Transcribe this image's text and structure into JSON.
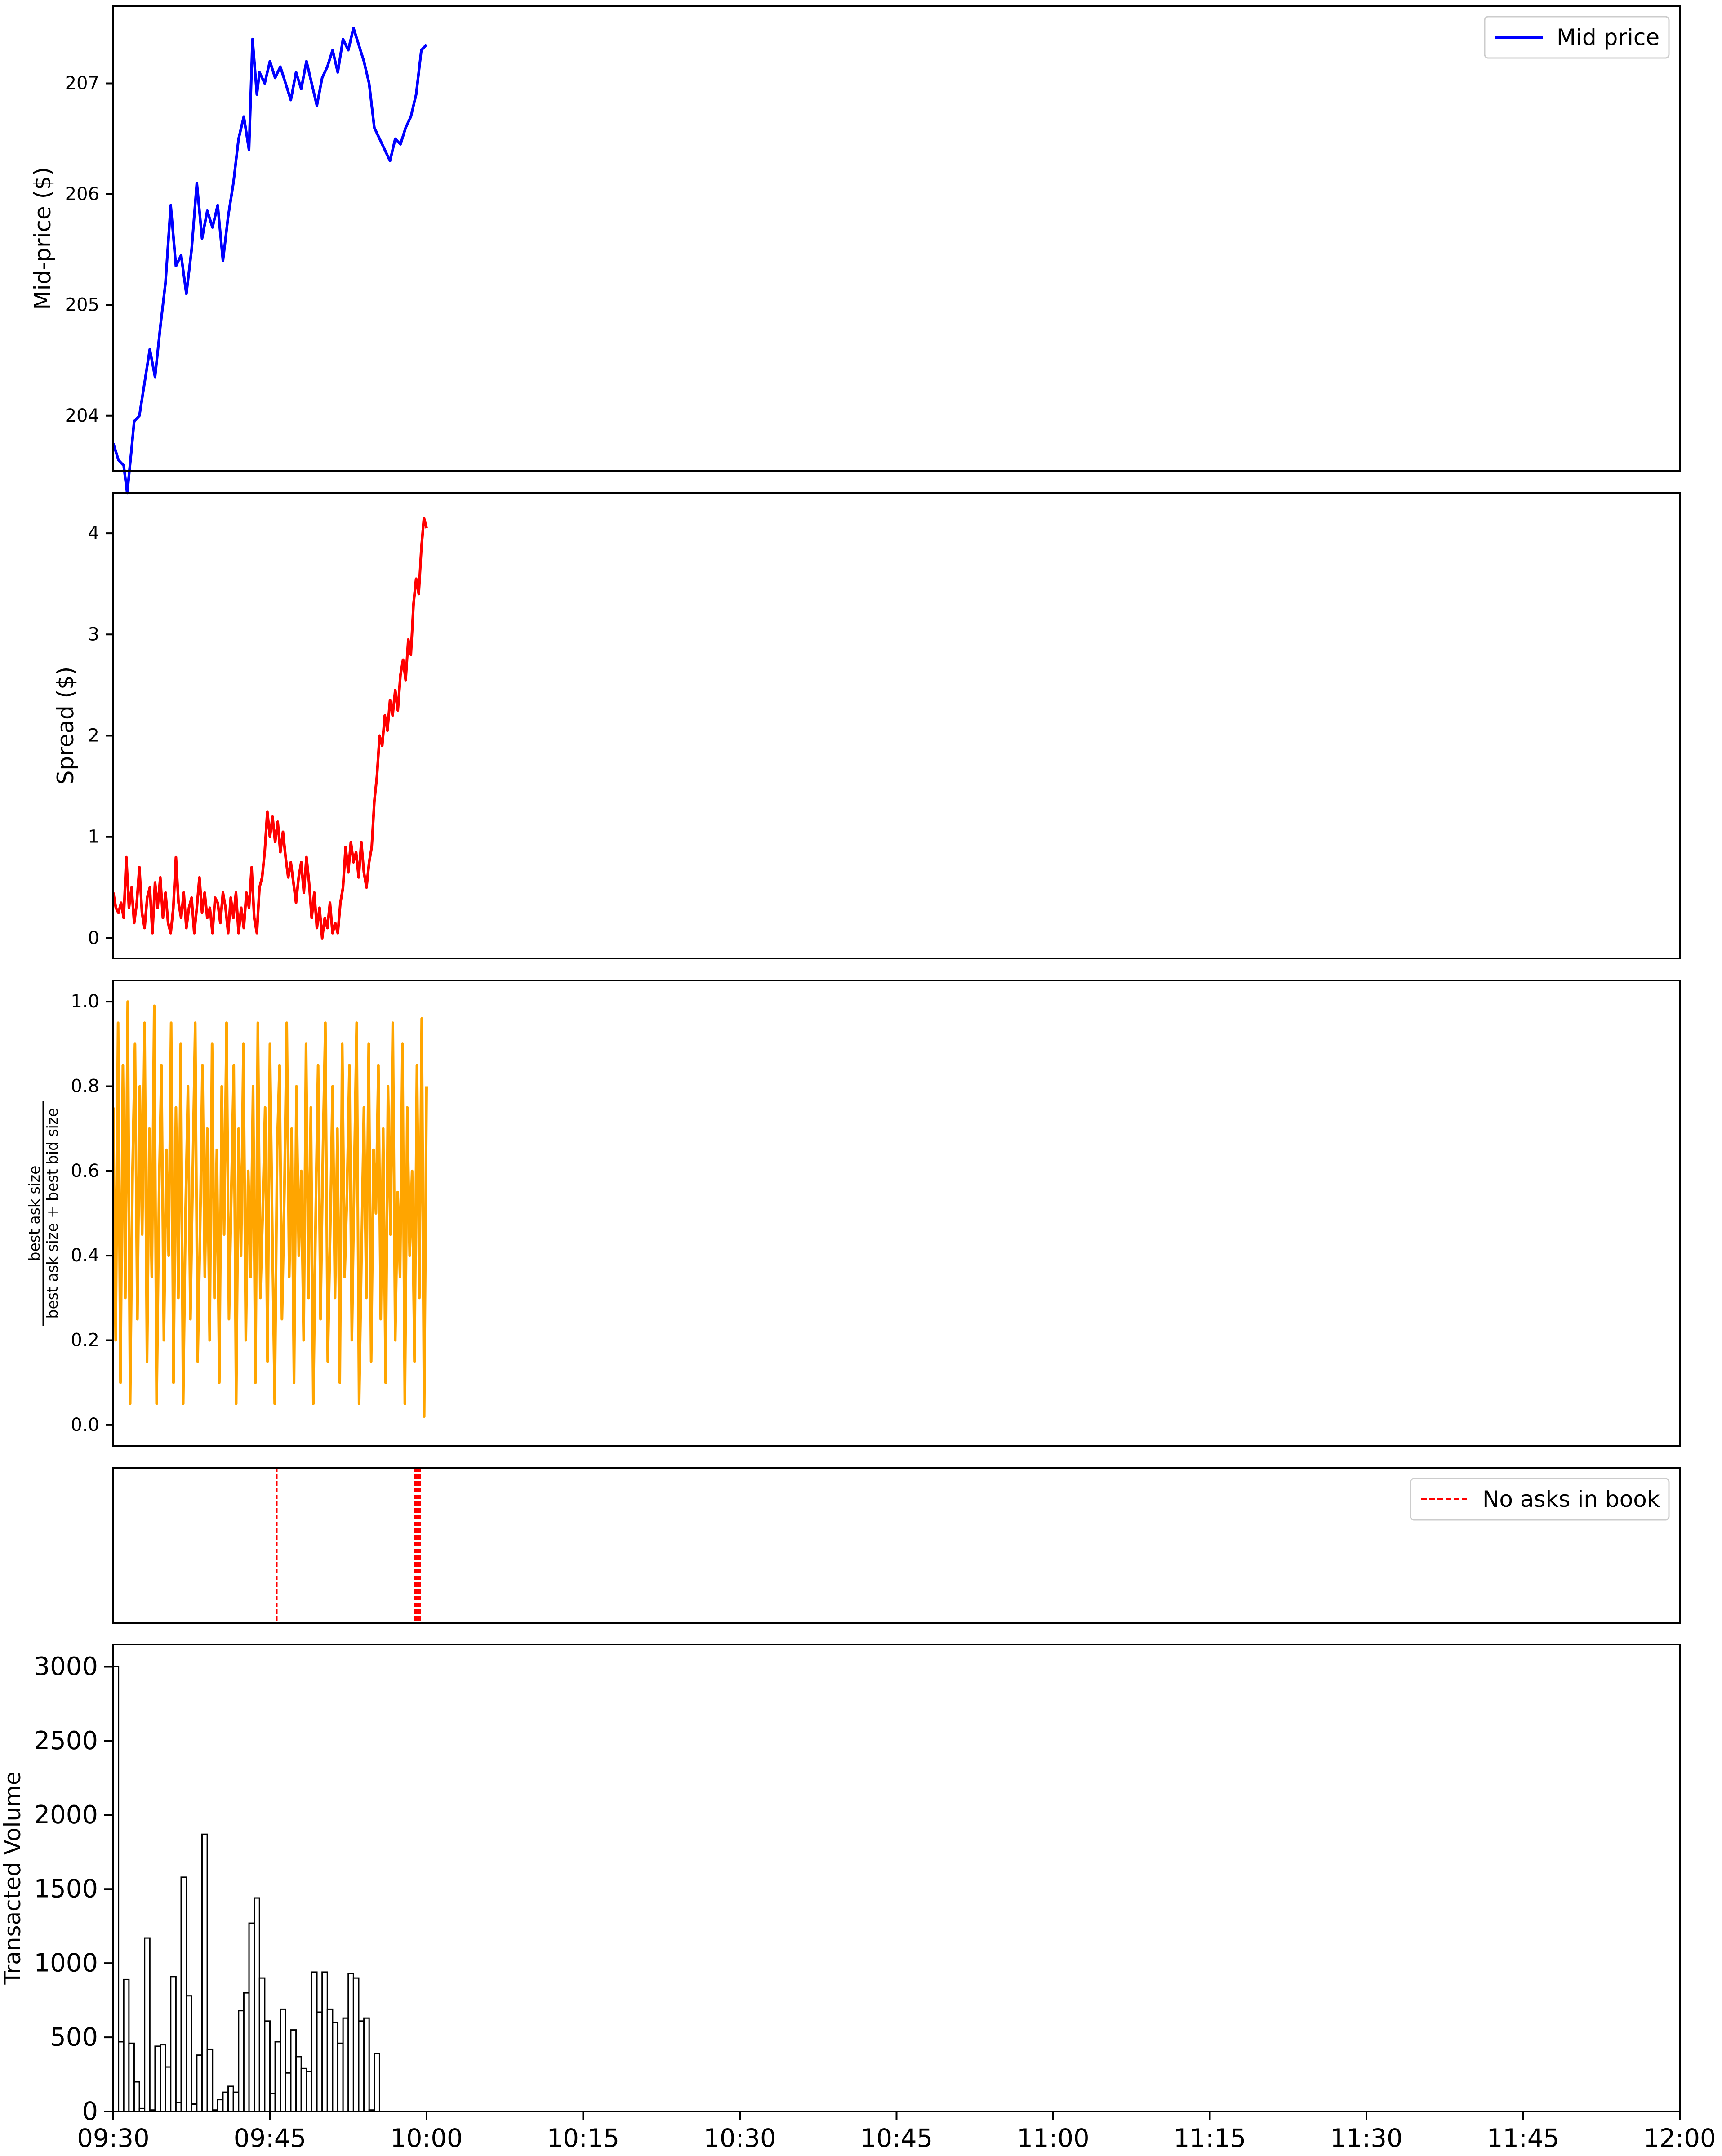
{
  "chart_data": [
    {
      "type": "line",
      "ylabel": "Mid-price ($)",
      "ylim": [
        203.5,
        207.7
      ],
      "yticks": [
        "204",
        "205",
        "206",
        "207"
      ],
      "legend": "top-right",
      "series": [
        {
          "name": "Mid price",
          "color": "#0000ff",
          "points": [
            [
              "09:30",
              203.75
            ],
            [
              "09:30:30",
              203.6
            ],
            [
              "09:31",
              203.55
            ],
            [
              "09:31:20",
              203.3
            ],
            [
              "09:31:45",
              203.7
            ],
            [
              "09:32",
              203.95
            ],
            [
              "09:32:30",
              204.0
            ],
            [
              "09:33",
              204.3
            ],
            [
              "09:33:30",
              204.6
            ],
            [
              "09:34",
              204.35
            ],
            [
              "09:34:30",
              204.8
            ],
            [
              "09:35",
              205.2
            ],
            [
              "09:35:30",
              205.9
            ],
            [
              "09:36",
              205.35
            ],
            [
              "09:36:30",
              205.45
            ],
            [
              "09:37",
              205.1
            ],
            [
              "09:37:30",
              205.5
            ],
            [
              "09:38",
              206.1
            ],
            [
              "09:38:30",
              205.6
            ],
            [
              "09:39",
              205.85
            ],
            [
              "09:39:30",
              205.7
            ],
            [
              "09:40",
              205.9
            ],
            [
              "09:40:30",
              205.4
            ],
            [
              "09:41",
              205.8
            ],
            [
              "09:41:30",
              206.1
            ],
            [
              "09:42",
              206.5
            ],
            [
              "09:42:30",
              206.7
            ],
            [
              "09:43",
              206.4
            ],
            [
              "09:43:20",
              207.4
            ],
            [
              "09:43:45",
              206.9
            ],
            [
              "09:44",
              207.1
            ],
            [
              "09:44:30",
              207.0
            ],
            [
              "09:45",
              207.2
            ],
            [
              "09:45:30",
              207.05
            ],
            [
              "09:46",
              207.15
            ],
            [
              "09:46:30",
              207.0
            ],
            [
              "09:47",
              206.85
            ],
            [
              "09:47:30",
              207.1
            ],
            [
              "09:48",
              206.95
            ],
            [
              "09:48:30",
              207.2
            ],
            [
              "09:49",
              207.0
            ],
            [
              "09:49:30",
              206.8
            ],
            [
              "09:50",
              207.05
            ],
            [
              "09:50:30",
              207.15
            ],
            [
              "09:51",
              207.3
            ],
            [
              "09:51:30",
              207.1
            ],
            [
              "09:52",
              207.4
            ],
            [
              "09:52:30",
              207.3
            ],
            [
              "09:53",
              207.5
            ],
            [
              "09:53:30",
              207.35
            ],
            [
              "09:54",
              207.2
            ],
            [
              "09:54:30",
              207.0
            ],
            [
              "09:55",
              206.6
            ],
            [
              "09:55:30",
              206.5
            ],
            [
              "09:56",
              206.4
            ],
            [
              "09:56:30",
              206.3
            ],
            [
              "09:57",
              206.5
            ],
            [
              "09:57:30",
              206.45
            ],
            [
              "09:58",
              206.6
            ],
            [
              "09:58:30",
              206.7
            ],
            [
              "09:59",
              206.9
            ],
            [
              "09:59:30",
              207.3
            ],
            [
              "10:00",
              207.35
            ]
          ]
        }
      ]
    },
    {
      "type": "line",
      "ylabel": "Spread ($)",
      "ylim": [
        -0.2,
        4.4
      ],
      "yticks": [
        "0",
        "1",
        "2",
        "3",
        "4"
      ],
      "series": [
        {
          "color": "#ff0000",
          "points": [
            [
              "09:30",
              0.45
            ],
            [
              "09:30:15",
              0.3
            ],
            [
              "09:30:30",
              0.25
            ],
            [
              "09:30:45",
              0.35
            ],
            [
              "09:31",
              0.2
            ],
            [
              "09:31:15",
              0.8
            ],
            [
              "09:31:30",
              0.3
            ],
            [
              "09:31:45",
              0.5
            ],
            [
              "09:32",
              0.15
            ],
            [
              "09:32:15",
              0.35
            ],
            [
              "09:32:30",
              0.7
            ],
            [
              "09:32:45",
              0.25
            ],
            [
              "09:33",
              0.1
            ],
            [
              "09:33:15",
              0.4
            ],
            [
              "09:33:30",
              0.5
            ],
            [
              "09:33:45",
              0.05
            ],
            [
              "09:34",
              0.55
            ],
            [
              "09:34:15",
              0.3
            ],
            [
              "09:34:30",
              0.6
            ],
            [
              "09:34:45",
              0.2
            ],
            [
              "09:35",
              0.45
            ],
            [
              "09:35:15",
              0.15
            ],
            [
              "09:35:30",
              0.05
            ],
            [
              "09:35:45",
              0.3
            ],
            [
              "09:36",
              0.8
            ],
            [
              "09:36:15",
              0.35
            ],
            [
              "09:36:30",
              0.2
            ],
            [
              "09:36:45",
              0.45
            ],
            [
              "09:37",
              0.1
            ],
            [
              "09:37:15",
              0.3
            ],
            [
              "09:37:30",
              0.4
            ],
            [
              "09:37:45",
              0.05
            ],
            [
              "09:38",
              0.3
            ],
            [
              "09:38:15",
              0.6
            ],
            [
              "09:38:30",
              0.25
            ],
            [
              "09:38:45",
              0.45
            ],
            [
              "09:39",
              0.2
            ],
            [
              "09:39:15",
              0.3
            ],
            [
              "09:39:30",
              0.05
            ],
            [
              "09:39:45",
              0.4
            ],
            [
              "09:40",
              0.35
            ],
            [
              "09:40:15",
              0.15
            ],
            [
              "09:40:30",
              0.45
            ],
            [
              "09:40:45",
              0.3
            ],
            [
              "09:41",
              0.05
            ],
            [
              "09:41:15",
              0.4
            ],
            [
              "09:41:30",
              0.2
            ],
            [
              "09:41:45",
              0.45
            ],
            [
              "09:42",
              0.05
            ],
            [
              "09:42:15",
              0.3
            ],
            [
              "09:42:30",
              0.1
            ],
            [
              "09:42:45",
              0.45
            ],
            [
              "09:43",
              0.3
            ],
            [
              "09:43:15",
              0.7
            ],
            [
              "09:43:30",
              0.2
            ],
            [
              "09:43:45",
              0.05
            ],
            [
              "09:44",
              0.5
            ],
            [
              "09:44:15",
              0.6
            ],
            [
              "09:44:30",
              0.85
            ],
            [
              "09:44:45",
              1.25
            ],
            [
              "09:45",
              1.0
            ],
            [
              "09:45:15",
              1.2
            ],
            [
              "09:45:30",
              0.95
            ],
            [
              "09:45:45",
              1.15
            ],
            [
              "09:46",
              0.85
            ],
            [
              "09:46:15",
              1.05
            ],
            [
              "09:46:30",
              0.8
            ],
            [
              "09:46:45",
              0.6
            ],
            [
              "09:47",
              0.75
            ],
            [
              "09:47:15",
              0.55
            ],
            [
              "09:47:30",
              0.35
            ],
            [
              "09:47:45",
              0.6
            ],
            [
              "09:48",
              0.75
            ],
            [
              "09:48:15",
              0.45
            ],
            [
              "09:48:30",
              0.8
            ],
            [
              "09:48:45",
              0.55
            ],
            [
              "09:49",
              0.2
            ],
            [
              "09:49:15",
              0.45
            ],
            [
              "09:49:30",
              0.1
            ],
            [
              "09:49:45",
              0.3
            ],
            [
              "09:50",
              0.0
            ],
            [
              "09:50:15",
              0.2
            ],
            [
              "09:50:30",
              0.1
            ],
            [
              "09:50:45",
              0.35
            ],
            [
              "09:51",
              0.05
            ],
            [
              "09:51:15",
              0.15
            ],
            [
              "09:51:30",
              0.05
            ],
            [
              "09:51:45",
              0.35
            ],
            [
              "09:52",
              0.5
            ],
            [
              "09:52:15",
              0.9
            ],
            [
              "09:52:30",
              0.65
            ],
            [
              "09:52:45",
              0.95
            ],
            [
              "09:53",
              0.75
            ],
            [
              "09:53:15",
              0.85
            ],
            [
              "09:53:30",
              0.6
            ],
            [
              "09:53:45",
              0.95
            ],
            [
              "09:54",
              0.65
            ],
            [
              "09:54:15",
              0.5
            ],
            [
              "09:54:30",
              0.75
            ],
            [
              "09:54:45",
              0.9
            ],
            [
              "09:55",
              1.35
            ],
            [
              "09:55:15",
              1.6
            ],
            [
              "09:55:30",
              2.0
            ],
            [
              "09:55:45",
              1.9
            ],
            [
              "09:56",
              2.2
            ],
            [
              "09:56:15",
              2.05
            ],
            [
              "09:56:30",
              2.35
            ],
            [
              "09:56:45",
              2.2
            ],
            [
              "09:57",
              2.45
            ],
            [
              "09:57:15",
              2.25
            ],
            [
              "09:57:30",
              2.6
            ],
            [
              "09:57:45",
              2.75
            ],
            [
              "09:58",
              2.55
            ],
            [
              "09:58:15",
              2.95
            ],
            [
              "09:58:30",
              2.8
            ],
            [
              "09:58:45",
              3.3
            ],
            [
              "09:59",
              3.55
            ],
            [
              "09:59:15",
              3.4
            ],
            [
              "09:59:30",
              3.85
            ],
            [
              "09:59:45",
              4.15
            ],
            [
              "10:00",
              4.05
            ]
          ]
        }
      ]
    },
    {
      "type": "line",
      "ylabel": "best ask size",
      "ylabel_denominator": "best ask size + best bid size",
      "ylim": [
        -0.05,
        1.05
      ],
      "yticks": [
        "0.0",
        "0.2",
        "0.4",
        "0.6",
        "0.8",
        "1.0"
      ],
      "series": [
        {
          "color": "#ffa500",
          "x_start": "09:30",
          "x_end": "10:00",
          "values": [
            0.75,
            0.2,
            0.95,
            0.1,
            0.85,
            0.3,
            1.0,
            0.05,
            0.6,
            0.9,
            0.25,
            0.8,
            0.45,
            0.95,
            0.15,
            0.7,
            0.35,
            0.99,
            0.05,
            0.55,
            0.85,
            0.2,
            0.65,
            0.4,
            0.95,
            0.1,
            0.75,
            0.3,
            0.9,
            0.05,
            0.5,
            0.8,
            0.25,
            0.6,
            0.95,
            0.15,
            0.45,
            0.85,
            0.35,
            0.7,
            0.2,
            0.9,
            0.3,
            0.65,
            0.1,
            0.8,
            0.45,
            0.95,
            0.25,
            0.55,
            0.85,
            0.05,
            0.7,
            0.4,
            0.9,
            0.2,
            0.6,
            0.35,
            0.8,
            0.1,
            0.95,
            0.3,
            0.5,
            0.75,
            0.15,
            0.9,
            0.45,
            0.05,
            0.65,
            0.85,
            0.25,
            0.55,
            0.95,
            0.35,
            0.7,
            0.1,
            0.8,
            0.4,
            0.6,
            0.2,
            0.9,
            0.3,
            0.75,
            0.05,
            0.5,
            0.85,
            0.25,
            0.65,
            0.95,
            0.15,
            0.45,
            0.8,
            0.3,
            0.7,
            0.1,
            0.9,
            0.35,
            0.55,
            0.85,
            0.2,
            0.6,
            0.95,
            0.05,
            0.4,
            0.75,
            0.3,
            0.9,
            0.15,
            0.65,
            0.5,
            0.85,
            0.25,
            0.7,
            0.1,
            0.8,
            0.45,
            0.95,
            0.2,
            0.55,
            0.35,
            0.9,
            0.05,
            0.75,
            0.4,
            0.6,
            0.15,
            0.85,
            0.3,
            0.96,
            0.02,
            0.8
          ]
        }
      ]
    },
    {
      "type": "line",
      "legend": "top-right",
      "series": [
        {
          "name": "No asks in book",
          "color": "#ff0000",
          "style": "dashed",
          "x": [
            "09:45:40",
            "09:58:50",
            "09:58:57",
            "09:59:03",
            "09:59:10",
            "09:59:17",
            "09:59:24"
          ]
        }
      ]
    },
    {
      "type": "bar",
      "ylabel": "Transacted Volume",
      "ylim": [
        0,
        3150
      ],
      "yticks": [
        "0",
        "500",
        "1000",
        "1500",
        "2000",
        "2500",
        "3000"
      ],
      "xlim": [
        "09:30",
        "12:00"
      ],
      "xticks": [
        "09:30",
        "09:45",
        "10:00",
        "10:15",
        "10:30",
        "10:45",
        "11:00",
        "11:15",
        "11:30",
        "11:45",
        "12:00"
      ],
      "bin_width": "30s",
      "series": [
        {
          "color": "#ffffff",
          "edgecolor": "#000000",
          "x_start": "09:30",
          "values": [
            3000,
            470,
            890,
            460,
            200,
            20,
            1170,
            10,
            440,
            450,
            300,
            910,
            60,
            1580,
            780,
            50,
            380,
            1870,
            420,
            10,
            80,
            130,
            170,
            130,
            680,
            800,
            1270,
            1440,
            900,
            610,
            120,
            470,
            690,
            260,
            550,
            370,
            290,
            270,
            940,
            670,
            940,
            690,
            600,
            460,
            630,
            930,
            900,
            610,
            630,
            10,
            390
          ]
        }
      ]
    }
  ]
}
